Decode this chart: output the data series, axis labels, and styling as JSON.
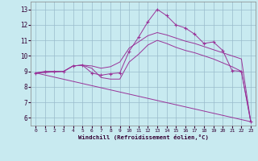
{
  "xlabel": "Windchill (Refroidissement éolien,°C)",
  "xlim": [
    -0.5,
    23.5
  ],
  "ylim": [
    5.5,
    13.5
  ],
  "xticks": [
    0,
    1,
    2,
    3,
    4,
    5,
    6,
    7,
    8,
    9,
    10,
    11,
    12,
    13,
    14,
    15,
    16,
    17,
    18,
    19,
    20,
    21,
    22,
    23
  ],
  "yticks": [
    6,
    7,
    8,
    9,
    10,
    11,
    12,
    13
  ],
  "bg_color": "#c8eaf0",
  "line_color": "#993399",
  "grid_color": "#99bbcc",
  "line1_x": [
    0,
    1,
    2,
    3,
    4,
    5,
    6,
    7,
    8,
    9,
    10,
    11,
    12,
    13,
    14,
    15,
    16,
    17,
    18,
    19,
    20,
    21,
    22,
    23
  ],
  "line1_y": [
    8.9,
    9.0,
    9.0,
    9.0,
    9.35,
    9.4,
    8.9,
    8.75,
    8.85,
    8.9,
    10.3,
    11.2,
    12.2,
    13.0,
    12.6,
    12.0,
    11.8,
    11.4,
    10.8,
    10.9,
    10.35,
    9.05,
    9.0,
    5.75
  ],
  "line2_x": [
    0,
    3,
    4,
    5,
    6,
    7,
    8,
    9,
    10,
    11,
    12,
    13,
    14,
    15,
    16,
    17,
    18,
    19,
    20,
    21,
    22,
    23
  ],
  "line2_y": [
    8.9,
    9.0,
    9.35,
    9.4,
    9.35,
    9.2,
    9.3,
    9.6,
    10.5,
    10.9,
    11.3,
    11.5,
    11.35,
    11.15,
    10.95,
    10.8,
    10.6,
    10.4,
    10.2,
    10.0,
    9.8,
    5.75
  ],
  "line3_x": [
    0,
    23
  ],
  "line3_y": [
    8.9,
    5.75
  ],
  "line4_x": [
    0,
    3,
    4,
    5,
    6,
    7,
    8,
    9,
    10,
    11,
    12,
    13,
    14,
    15,
    16,
    17,
    18,
    19,
    20,
    21,
    22,
    23
  ],
  "line4_y": [
    8.9,
    9.0,
    9.35,
    9.4,
    9.2,
    8.6,
    8.5,
    8.5,
    9.6,
    10.1,
    10.7,
    11.0,
    10.8,
    10.55,
    10.35,
    10.2,
    10.0,
    9.8,
    9.55,
    9.3,
    9.0,
    5.75
  ]
}
